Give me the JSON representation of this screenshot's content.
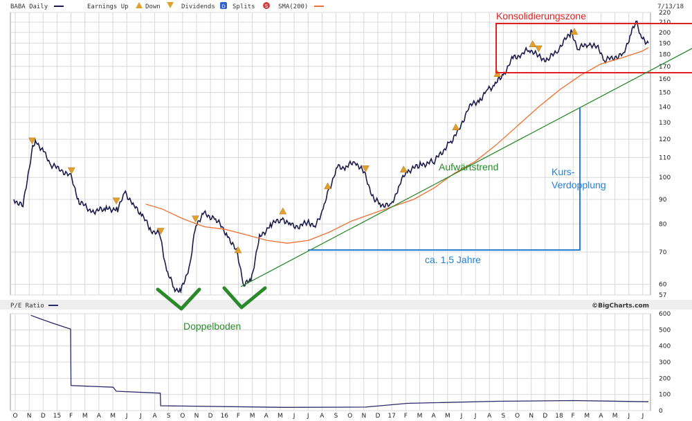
{
  "legend": {
    "symbol": "BABA Daily",
    "earnings_label": "Earnings Up",
    "down_label": "Down",
    "dividends_label": "Dividends",
    "dividends_badge": "D",
    "splits_label": "Splits",
    "splits_badge": "S",
    "sma_label": "SMA(200)",
    "date": "7/13/18"
  },
  "pe_panel": {
    "title": "P/E Ratio"
  },
  "brand": "©BigCharts.com",
  "colors": {
    "price": "#1a1a4a",
    "sma": "#f07030",
    "trend": "#2a8a2a",
    "zone": "#e02020",
    "measure": "#2a7fd0",
    "marker": "#e0a030",
    "pe": "#2a2a6a"
  },
  "annotations": {
    "zone": "Konsolidierungszone",
    "uptrend": "Aufwärtstrend",
    "doubling_1": "Kurs-",
    "doubling_2": "Verdopplung",
    "duration": "ca. 1,5 Jahre",
    "double_bottom": "Doppelboden"
  },
  "chart_data": [
    {
      "type": "line",
      "panel": "price",
      "y_scale": "log",
      "ylim": [
        57,
        220
      ],
      "yticks": [
        57,
        60,
        70,
        80,
        90,
        100,
        110,
        120,
        130,
        140,
        150,
        160,
        170,
        180,
        190,
        200,
        210,
        220
      ],
      "x_labels": [
        "O",
        "N",
        "D",
        "15",
        "F",
        "M",
        "A",
        "M",
        "J",
        "J",
        "A",
        "S",
        "O",
        "N",
        "D",
        "16",
        "F",
        "M",
        "A",
        "M",
        "J",
        "J",
        "A",
        "S",
        "O",
        "N",
        "D",
        "17",
        "F",
        "M",
        "A",
        "M",
        "J",
        "J",
        "A",
        "S",
        "O",
        "N",
        "D",
        "18",
        "F",
        "M",
        "A",
        "M",
        "J",
        "J"
      ],
      "x_range": [
        "2014-09-25",
        "2018-07-13"
      ],
      "grid": true,
      "series": [
        {
          "name": "BABA Daily",
          "x": [
            "2014-09-25",
            "2014-10-15",
            "2014-11-05",
            "2014-11-13",
            "2014-12-01",
            "2014-12-15",
            "2015-01-05",
            "2015-01-28",
            "2015-02-15",
            "2015-03-15",
            "2015-04-15",
            "2015-05-10",
            "2015-05-27",
            "2015-06-15",
            "2015-07-01",
            "2015-07-20",
            "2015-08-10",
            "2015-08-25",
            "2015-09-10",
            "2015-09-25",
            "2015-10-15",
            "2015-10-28",
            "2015-11-15",
            "2015-12-10",
            "2016-01-05",
            "2016-01-25",
            "2016-02-10",
            "2016-02-25",
            "2016-03-15",
            "2016-04-10",
            "2016-05-05",
            "2016-05-20",
            "2016-06-10",
            "2016-06-30",
            "2016-07-15",
            "2016-08-01",
            "2016-08-15",
            "2016-09-01",
            "2016-09-20",
            "2016-10-10",
            "2016-10-30",
            "2016-11-20",
            "2016-12-05",
            "2016-12-28",
            "2017-01-15",
            "2017-02-01",
            "2017-03-01",
            "2017-04-01",
            "2017-05-05",
            "2017-05-25",
            "2017-06-15",
            "2017-07-10",
            "2017-07-25",
            "2017-08-10",
            "2017-09-01",
            "2017-09-20",
            "2017-10-10",
            "2017-10-25",
            "2017-11-15",
            "2017-12-05",
            "2017-12-28",
            "2018-01-25",
            "2018-02-10",
            "2018-03-05",
            "2018-03-25",
            "2018-04-10",
            "2018-05-01",
            "2018-05-20",
            "2018-06-05",
            "2018-06-18",
            "2018-06-28",
            "2018-07-13"
          ],
          "values": [
            90,
            87,
            116,
            119,
            112,
            106,
            104,
            100,
            89,
            85,
            86,
            86,
            93,
            87,
            84,
            78,
            76,
            64,
            59,
            58,
            66,
            80,
            84,
            82,
            76,
            70,
            60,
            61,
            75,
            80,
            82,
            80,
            79,
            81,
            79,
            86,
            95,
            105,
            105,
            108,
            102,
            90,
            88,
            87,
            97,
            103,
            106,
            108,
            118,
            125,
            140,
            145,
            152,
            155,
            165,
            177,
            180,
            185,
            178,
            175,
            185,
            200,
            185,
            190,
            185,
            175,
            178,
            180,
            200,
            210,
            195,
            190
          ]
        },
        {
          "name": "SMA(200)",
          "x": [
            "2015-07-10",
            "2015-08-15",
            "2015-09-30",
            "2015-11-15",
            "2015-12-31",
            "2016-02-15",
            "2016-03-31",
            "2016-05-15",
            "2016-06-30",
            "2016-08-15",
            "2016-09-30",
            "2016-11-15",
            "2016-12-31",
            "2017-02-15",
            "2017-03-31",
            "2017-05-15",
            "2017-06-30",
            "2017-08-15",
            "2017-09-30",
            "2017-11-15",
            "2017-12-31",
            "2018-02-15",
            "2018-03-31",
            "2018-05-15",
            "2018-06-30",
            "2018-07-13"
          ],
          "values": [
            88,
            86,
            82,
            79,
            78,
            76,
            74,
            73,
            74,
            77,
            81,
            84,
            87,
            90,
            95,
            102,
            108,
            117,
            128,
            140,
            152,
            163,
            172,
            177,
            183,
            186
          ]
        }
      ],
      "markers": {
        "earnings_up": [
          "2016-01-28",
          "2016-05-05",
          "2016-08-11",
          "2017-01-24",
          "2017-05-18",
          "2017-08-17",
          "2017-11-02",
          "2018-02-01"
        ],
        "earnings_down": [
          "2014-11-04",
          "2015-01-29",
          "2015-05-07",
          "2015-08-12",
          "2015-10-27",
          "2016-11-02",
          "2017-11-15"
        ]
      }
    },
    {
      "type": "line",
      "panel": "pe",
      "title": "P/E Ratio",
      "ylim": [
        0,
        600
      ],
      "yticks": [
        0,
        100,
        200,
        300,
        400,
        500,
        600
      ],
      "grid": true,
      "series": [
        {
          "name": "P/E Ratio",
          "x": [
            "2014-11-01",
            "2014-11-20",
            "2014-12-20",
            "2015-01-27",
            "2015-01-28",
            "2015-04-30",
            "2015-05-07",
            "2015-08-11",
            "2015-08-12",
            "2016-05-05",
            "2016-11-02",
            "2017-02-01",
            "2017-08-17",
            "2018-02-01",
            "2018-07-13"
          ],
          "values": [
            590,
            570,
            540,
            505,
            155,
            145,
            120,
            108,
            30,
            20,
            22,
            45,
            58,
            62,
            55
          ]
        }
      ]
    }
  ]
}
